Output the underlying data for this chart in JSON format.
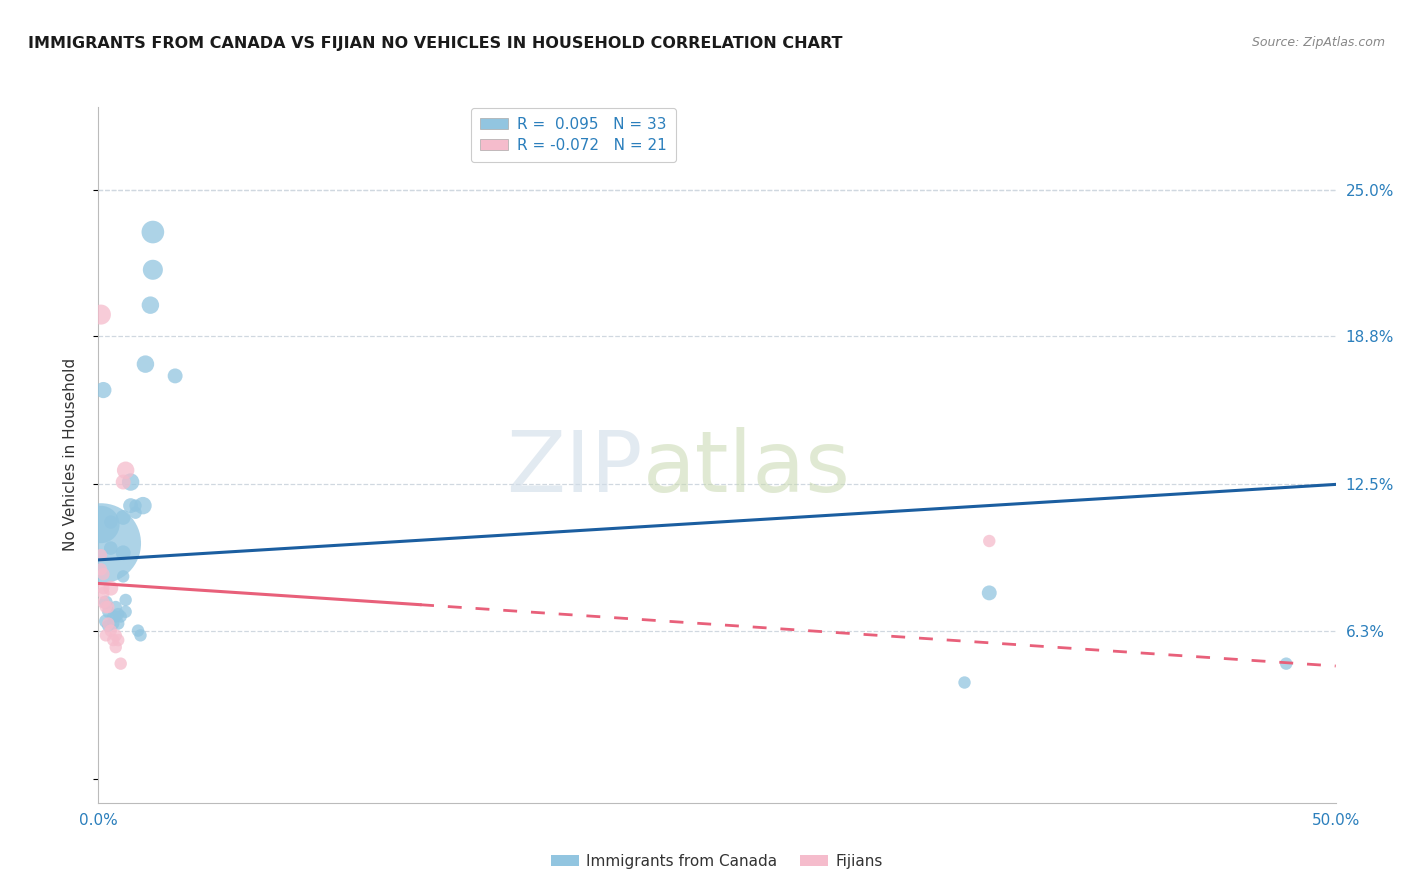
{
  "title": "IMMIGRANTS FROM CANADA VS FIJIAN NO VEHICLES IN HOUSEHOLD CORRELATION CHART",
  "source": "Source: ZipAtlas.com",
  "ylabel": "No Vehicles in Household",
  "yticks": [
    0.0,
    0.063,
    0.125,
    0.188,
    0.25
  ],
  "ytick_labels": [
    "",
    "6.3%",
    "12.5%",
    "18.8%",
    "25.0%"
  ],
  "xrange": [
    0.0,
    0.5
  ],
  "yrange": [
    -0.01,
    0.285
  ],
  "blue_color": "#92C5E0",
  "pink_color": "#F5BCCC",
  "blue_line_color": "#1B5EA0",
  "pink_line_color": "#E8607A",
  "watermark_zip": "ZIP",
  "watermark_atlas": "atlas",
  "blue_points": [
    [
      0.001,
      0.108,
      30
    ],
    [
      0.002,
      0.165,
      14
    ],
    [
      0.003,
      0.075,
      12
    ],
    [
      0.003,
      0.067,
      12
    ],
    [
      0.004,
      0.065,
      11
    ],
    [
      0.004,
      0.071,
      11
    ],
    [
      0.005,
      0.098,
      12
    ],
    [
      0.005,
      0.109,
      12
    ],
    [
      0.006,
      0.066,
      11
    ],
    [
      0.006,
      0.069,
      11
    ],
    [
      0.007,
      0.073,
      11
    ],
    [
      0.007,
      0.069,
      11
    ],
    [
      0.008,
      0.066,
      11
    ],
    [
      0.008,
      0.07,
      11
    ],
    [
      0.009,
      0.069,
      11
    ],
    [
      0.01,
      0.096,
      13
    ],
    [
      0.01,
      0.086,
      11
    ],
    [
      0.01,
      0.111,
      13
    ],
    [
      0.011,
      0.076,
      11
    ],
    [
      0.011,
      0.071,
      11
    ],
    [
      0.013,
      0.126,
      15
    ],
    [
      0.013,
      0.116,
      13
    ],
    [
      0.015,
      0.116,
      11
    ],
    [
      0.015,
      0.113,
      11
    ],
    [
      0.016,
      0.063,
      11
    ],
    [
      0.017,
      0.061,
      11
    ],
    [
      0.018,
      0.116,
      15
    ],
    [
      0.019,
      0.176,
      15
    ],
    [
      0.021,
      0.201,
      15
    ],
    [
      0.022,
      0.232,
      19
    ],
    [
      0.022,
      0.216,
      17
    ],
    [
      0.031,
      0.171,
      13
    ],
    [
      0.001,
      0.1,
      60
    ],
    [
      0.36,
      0.079,
      13
    ],
    [
      0.35,
      0.041,
      11
    ],
    [
      0.48,
      0.049,
      11
    ]
  ],
  "pink_points": [
    [
      0.001,
      0.197,
      17
    ],
    [
      0.001,
      0.095,
      11
    ],
    [
      0.001,
      0.089,
      11
    ],
    [
      0.002,
      0.081,
      11
    ],
    [
      0.002,
      0.079,
      11
    ],
    [
      0.002,
      0.087,
      11
    ],
    [
      0.002,
      0.075,
      11
    ],
    [
      0.003,
      0.061,
      11
    ],
    [
      0.003,
      0.073,
      11
    ],
    [
      0.004,
      0.073,
      11
    ],
    [
      0.004,
      0.066,
      11
    ],
    [
      0.005,
      0.081,
      13
    ],
    [
      0.005,
      0.063,
      11
    ],
    [
      0.006,
      0.059,
      11
    ],
    [
      0.007,
      0.061,
      11
    ],
    [
      0.007,
      0.056,
      11
    ],
    [
      0.008,
      0.059,
      11
    ],
    [
      0.009,
      0.049,
      11
    ],
    [
      0.01,
      0.126,
      13
    ],
    [
      0.011,
      0.131,
      15
    ],
    [
      0.36,
      0.101,
      11
    ]
  ],
  "blue_line": [
    [
      0.0,
      0.093
    ],
    [
      0.5,
      0.125
    ]
  ],
  "pink_line_solid": [
    [
      0.0,
      0.083
    ],
    [
      0.13,
      0.074
    ]
  ],
  "pink_line_dashed": [
    [
      0.13,
      0.074
    ],
    [
      0.5,
      0.048
    ]
  ]
}
